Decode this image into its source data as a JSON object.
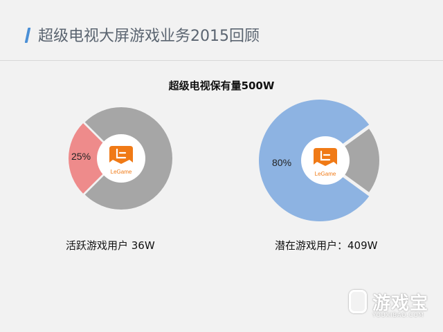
{
  "slide": {
    "title": "超级电视大屏游戏业务2015回顾"
  },
  "colors": {
    "accent": "#4a8fd6",
    "gray": "#a6a6a6",
    "pink": "#ee8b8b",
    "blue": "#8db3e2",
    "logo_orange": "#f07a16"
  },
  "logo": {
    "text": "LeGame",
    "icon": "legame-logo-icon"
  },
  "chart_data": [
    {
      "type": "pie",
      "title": "超级电视保有量500W",
      "label": "25%",
      "values": [
        25,
        75
      ],
      "highlight_color": "#ee8b8b",
      "rest_color": "#a6a6a6",
      "caption": "活跃游戏用户 36W"
    },
    {
      "type": "pie",
      "title": "",
      "label": "80%",
      "values": [
        80,
        20
      ],
      "highlight_color": "#8db3e2",
      "rest_color": "#a6a6a6",
      "caption": "潜在游戏用户：409W"
    }
  ],
  "watermark": {
    "text": "游戏宝",
    "sub": "YOUXIBAO.COM"
  }
}
